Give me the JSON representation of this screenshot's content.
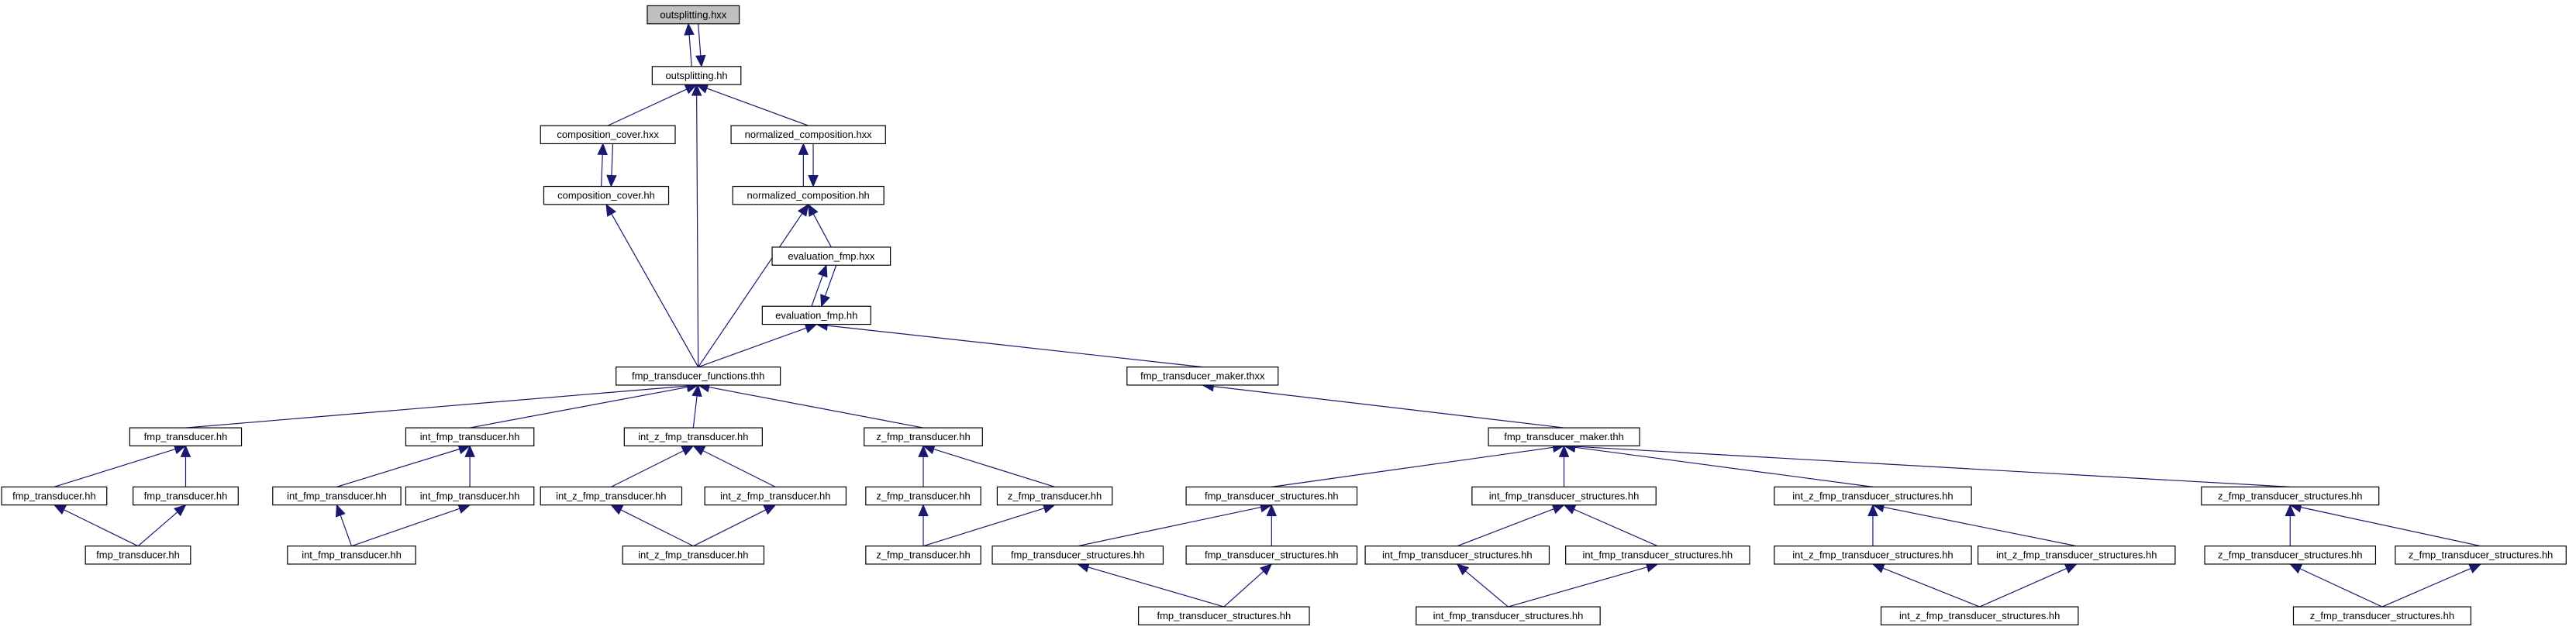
{
  "nodes": [
    {
      "label": "outsplitting.hxx"
    },
    {
      "label": "outsplitting.hh"
    },
    {
      "label": "composition_cover.hxx"
    },
    {
      "label": "normalized_composition.hxx"
    },
    {
      "label": "composition_cover.hh"
    },
    {
      "label": "normalized_composition.hh"
    },
    {
      "label": "evaluation_fmp.hxx"
    },
    {
      "label": "evaluation_fmp.hh"
    },
    {
      "label": "fmp_transducer_functions.thh"
    },
    {
      "label": "fmp_transducer_maker.thxx"
    },
    {
      "label": "fmp_transducer.hh"
    },
    {
      "label": "int_fmp_transducer.hh"
    },
    {
      "label": "int_z_fmp_transducer.hh"
    },
    {
      "label": "z_fmp_transducer.hh"
    },
    {
      "label": "fmp_transducer_maker.thh"
    },
    {
      "label": "fmp_transducer.hh"
    },
    {
      "label": "fmp_transducer.hh"
    },
    {
      "label": "int_fmp_transducer.hh"
    },
    {
      "label": "int_fmp_transducer.hh"
    },
    {
      "label": "int_z_fmp_transducer.hh"
    },
    {
      "label": "int_z_fmp_transducer.hh"
    },
    {
      "label": "z_fmp_transducer.hh"
    },
    {
      "label": "z_fmp_transducer.hh"
    },
    {
      "label": "fmp_transducer.hh"
    },
    {
      "label": "int_fmp_transducer.hh"
    },
    {
      "label": "int_z_fmp_transducer.hh"
    },
    {
      "label": "z_fmp_transducer.hh"
    },
    {
      "label": "fmp_transducer_structures.hh"
    },
    {
      "label": "int_fmp_transducer_structures.hh"
    },
    {
      "label": "int_z_fmp_transducer_structures.hh"
    },
    {
      "label": "z_fmp_transducer_structures.hh"
    },
    {
      "label": "fmp_transducer_structures.hh"
    },
    {
      "label": "fmp_transducer_structures.hh"
    },
    {
      "label": "int_fmp_transducer_structures.hh"
    },
    {
      "label": "int_fmp_transducer_structures.hh"
    },
    {
      "label": "int_z_fmp_transducer_structures.hh"
    },
    {
      "label": "int_z_fmp_transducer_structures.hh"
    },
    {
      "label": "z_fmp_transducer_structures.hh"
    },
    {
      "label": "z_fmp_transducer_structures.hh"
    },
    {
      "label": "fmp_transducer_structures.hh"
    },
    {
      "label": "int_fmp_transducer_structures.hh"
    },
    {
      "label": "int_z_fmp_transducer_structures.hh"
    },
    {
      "label": "z_fmp_transducer_structures.hh"
    }
  ]
}
